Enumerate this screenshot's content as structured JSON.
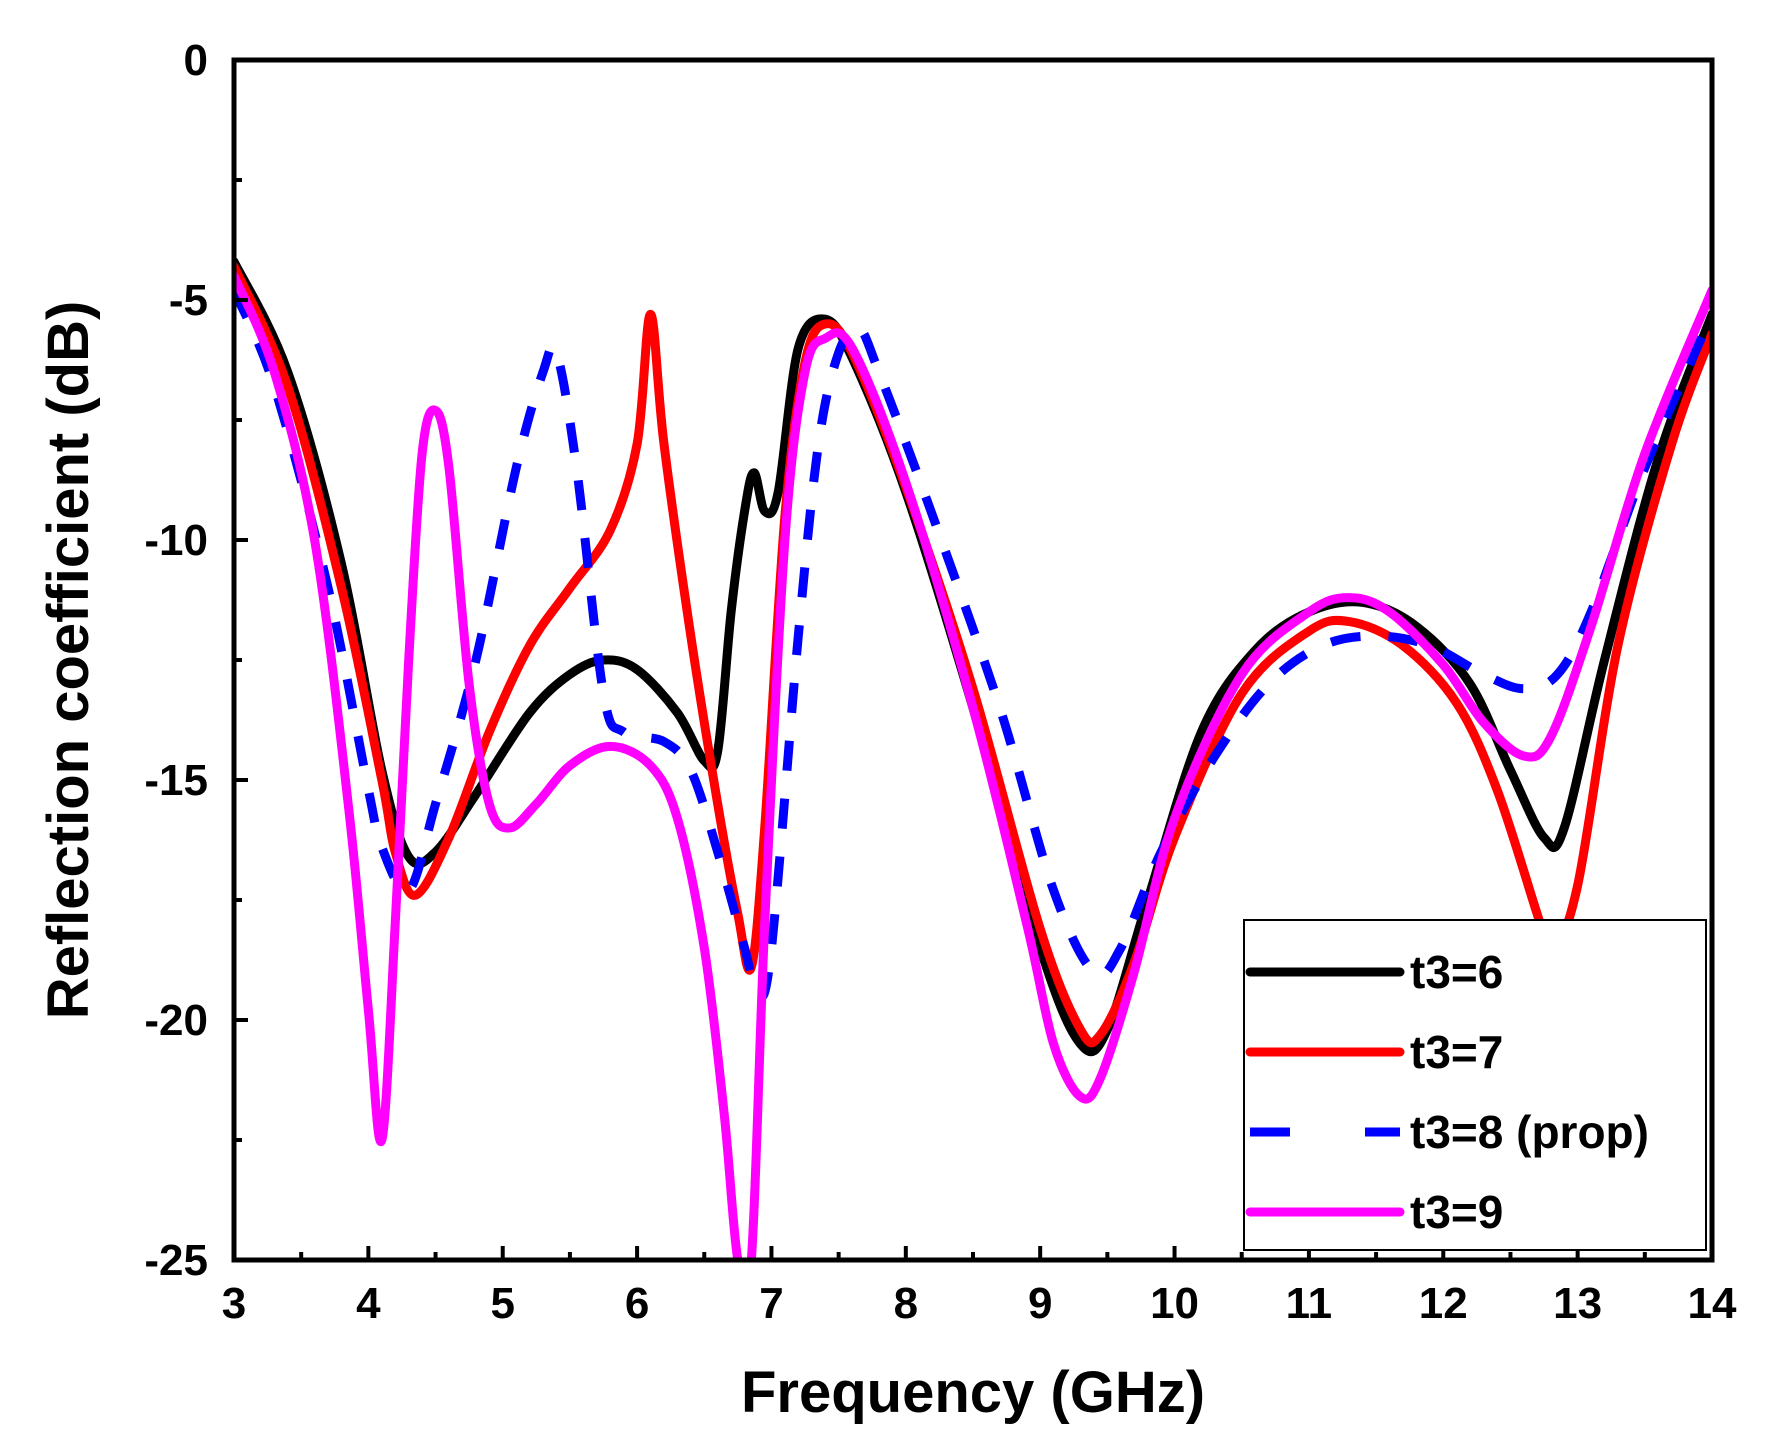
{
  "chart_data": {
    "type": "line",
    "title": "",
    "xlabel": "Frequency (GHz)",
    "ylabel": "Reflection coefficient (dB)",
    "xlim": [
      3,
      14
    ],
    "ylim": [
      -25,
      0
    ],
    "xticks": [
      3,
      4,
      5,
      6,
      7,
      8,
      9,
      10,
      11,
      12,
      13,
      14
    ],
    "yticks": [
      0,
      -5,
      -10,
      -15,
      -20,
      -25
    ],
    "grid": false,
    "legend_position": "bottom-right",
    "series": [
      {
        "name": "t3=6",
        "color": "#000000",
        "style": "solid",
        "points": [
          [
            3.0,
            -4.2
          ],
          [
            3.4,
            -6.5
          ],
          [
            3.8,
            -10.5
          ],
          [
            4.1,
            -14.8
          ],
          [
            4.3,
            -16.6
          ],
          [
            4.5,
            -16.5
          ],
          [
            4.8,
            -15.3
          ],
          [
            5.2,
            -13.6
          ],
          [
            5.5,
            -12.8
          ],
          [
            5.75,
            -12.5
          ],
          [
            6.0,
            -12.7
          ],
          [
            6.3,
            -13.6
          ],
          [
            6.5,
            -14.6
          ],
          [
            6.6,
            -14.4
          ],
          [
            6.7,
            -11.5
          ],
          [
            6.8,
            -9.4
          ],
          [
            6.87,
            -8.6
          ],
          [
            6.95,
            -9.4
          ],
          [
            7.05,
            -9.0
          ],
          [
            7.2,
            -6.0
          ],
          [
            7.4,
            -5.4
          ],
          [
            7.6,
            -6.2
          ],
          [
            8.0,
            -9.0
          ],
          [
            8.5,
            -13.5
          ],
          [
            9.0,
            -18.5
          ],
          [
            9.3,
            -20.5
          ],
          [
            9.5,
            -20.2
          ],
          [
            9.8,
            -17.5
          ],
          [
            10.2,
            -14.0
          ],
          [
            10.6,
            -12.3
          ],
          [
            11.0,
            -11.5
          ],
          [
            11.4,
            -11.3
          ],
          [
            11.8,
            -11.8
          ],
          [
            12.2,
            -13.0
          ],
          [
            12.5,
            -14.8
          ],
          [
            12.75,
            -16.2
          ],
          [
            12.9,
            -16.0
          ],
          [
            13.2,
            -12.5
          ],
          [
            13.6,
            -8.3
          ],
          [
            14.0,
            -5.3
          ]
        ]
      },
      {
        "name": "t3=7",
        "color": "#ff0000",
        "style": "solid",
        "points": [
          [
            3.0,
            -4.3
          ],
          [
            3.4,
            -6.8
          ],
          [
            3.8,
            -11.0
          ],
          [
            4.1,
            -15.0
          ],
          [
            4.2,
            -16.5
          ],
          [
            4.35,
            -17.4
          ],
          [
            4.6,
            -16.2
          ],
          [
            4.9,
            -14.0
          ],
          [
            5.2,
            -12.2
          ],
          [
            5.5,
            -11.0
          ],
          [
            5.8,
            -9.8
          ],
          [
            6.0,
            -8.0
          ],
          [
            6.1,
            -5.3
          ],
          [
            6.2,
            -8.0
          ],
          [
            6.4,
            -12.0
          ],
          [
            6.6,
            -15.5
          ],
          [
            6.75,
            -17.8
          ],
          [
            6.85,
            -18.9
          ],
          [
            6.95,
            -16.0
          ],
          [
            7.1,
            -9.5
          ],
          [
            7.25,
            -6.3
          ],
          [
            7.4,
            -5.5
          ],
          [
            7.6,
            -6.1
          ],
          [
            8.0,
            -8.9
          ],
          [
            8.5,
            -13.1
          ],
          [
            9.0,
            -18.1
          ],
          [
            9.3,
            -20.2
          ],
          [
            9.45,
            -20.3
          ],
          [
            9.7,
            -18.8
          ],
          [
            10.0,
            -16.2
          ],
          [
            10.5,
            -13.2
          ],
          [
            11.0,
            -11.9
          ],
          [
            11.3,
            -11.7
          ],
          [
            11.7,
            -12.2
          ],
          [
            12.1,
            -13.4
          ],
          [
            12.4,
            -15.2
          ],
          [
            12.7,
            -17.8
          ],
          [
            12.8,
            -18.6
          ],
          [
            13.0,
            -17.2
          ],
          [
            13.3,
            -12.2
          ],
          [
            13.7,
            -8.0
          ],
          [
            14.0,
            -5.7
          ]
        ]
      },
      {
        "name": "t3=8 (prop)",
        "color": "#0000ff",
        "style": "dashed",
        "points": [
          [
            3.0,
            -4.8
          ],
          [
            3.3,
            -6.8
          ],
          [
            3.7,
            -11.0
          ],
          [
            4.0,
            -15.2
          ],
          [
            4.1,
            -16.4
          ],
          [
            4.3,
            -17.3
          ],
          [
            4.5,
            -15.5
          ],
          [
            4.8,
            -12.5
          ],
          [
            5.1,
            -8.5
          ],
          [
            5.3,
            -6.5
          ],
          [
            5.4,
            -6.1
          ],
          [
            5.55,
            -8.5
          ],
          [
            5.75,
            -13.2
          ],
          [
            5.9,
            -14.0
          ],
          [
            6.2,
            -14.2
          ],
          [
            6.4,
            -14.8
          ],
          [
            6.6,
            -16.5
          ],
          [
            6.8,
            -18.5
          ],
          [
            6.9,
            -19.5
          ],
          [
            7.0,
            -18.5
          ],
          [
            7.2,
            -12.0
          ],
          [
            7.35,
            -8.0
          ],
          [
            7.5,
            -6.1
          ],
          [
            7.65,
            -5.6
          ],
          [
            7.8,
            -6.5
          ],
          [
            8.2,
            -9.5
          ],
          [
            8.7,
            -13.5
          ],
          [
            9.1,
            -17.3
          ],
          [
            9.4,
            -19.0
          ],
          [
            9.6,
            -18.5
          ],
          [
            9.9,
            -16.5
          ],
          [
            10.3,
            -14.5
          ],
          [
            10.7,
            -13.0
          ],
          [
            11.1,
            -12.2
          ],
          [
            11.5,
            -12.0
          ],
          [
            11.9,
            -12.2
          ],
          [
            12.3,
            -12.8
          ],
          [
            12.6,
            -13.1
          ],
          [
            12.85,
            -12.8
          ],
          [
            13.1,
            -11.5
          ],
          [
            13.5,
            -8.5
          ],
          [
            14.0,
            -5.3
          ]
        ]
      },
      {
        "name": "t3=9",
        "color": "#ff00ff",
        "style": "solid",
        "points": [
          [
            3.0,
            -4.5
          ],
          [
            3.3,
            -6.5
          ],
          [
            3.6,
            -10.0
          ],
          [
            3.85,
            -15.5
          ],
          [
            4.0,
            -19.8
          ],
          [
            4.1,
            -22.5
          ],
          [
            4.2,
            -18.0
          ],
          [
            4.3,
            -12.5
          ],
          [
            4.4,
            -8.2
          ],
          [
            4.5,
            -7.3
          ],
          [
            4.6,
            -8.5
          ],
          [
            4.75,
            -13.0
          ],
          [
            4.9,
            -15.5
          ],
          [
            5.05,
            -16.0
          ],
          [
            5.25,
            -15.5
          ],
          [
            5.5,
            -14.7
          ],
          [
            5.8,
            -14.3
          ],
          [
            6.1,
            -14.7
          ],
          [
            6.3,
            -15.8
          ],
          [
            6.5,
            -18.5
          ],
          [
            6.65,
            -22.0
          ],
          [
            6.75,
            -25.0
          ],
          [
            6.85,
            -25.0
          ],
          [
            6.95,
            -18.0
          ],
          [
            7.1,
            -10.0
          ],
          [
            7.25,
            -6.5
          ],
          [
            7.4,
            -5.8
          ],
          [
            7.6,
            -6.0
          ],
          [
            8.0,
            -8.8
          ],
          [
            8.5,
            -13.5
          ],
          [
            8.9,
            -18.0
          ],
          [
            9.1,
            -20.5
          ],
          [
            9.3,
            -21.6
          ],
          [
            9.45,
            -21.2
          ],
          [
            9.7,
            -19.0
          ],
          [
            10.0,
            -15.8
          ],
          [
            10.5,
            -12.8
          ],
          [
            11.0,
            -11.5
          ],
          [
            11.3,
            -11.2
          ],
          [
            11.6,
            -11.5
          ],
          [
            12.0,
            -12.6
          ],
          [
            12.3,
            -13.8
          ],
          [
            12.6,
            -14.5
          ],
          [
            12.8,
            -14.1
          ],
          [
            13.1,
            -11.8
          ],
          [
            13.5,
            -8.2
          ],
          [
            14.0,
            -4.8
          ]
        ]
      }
    ]
  }
}
